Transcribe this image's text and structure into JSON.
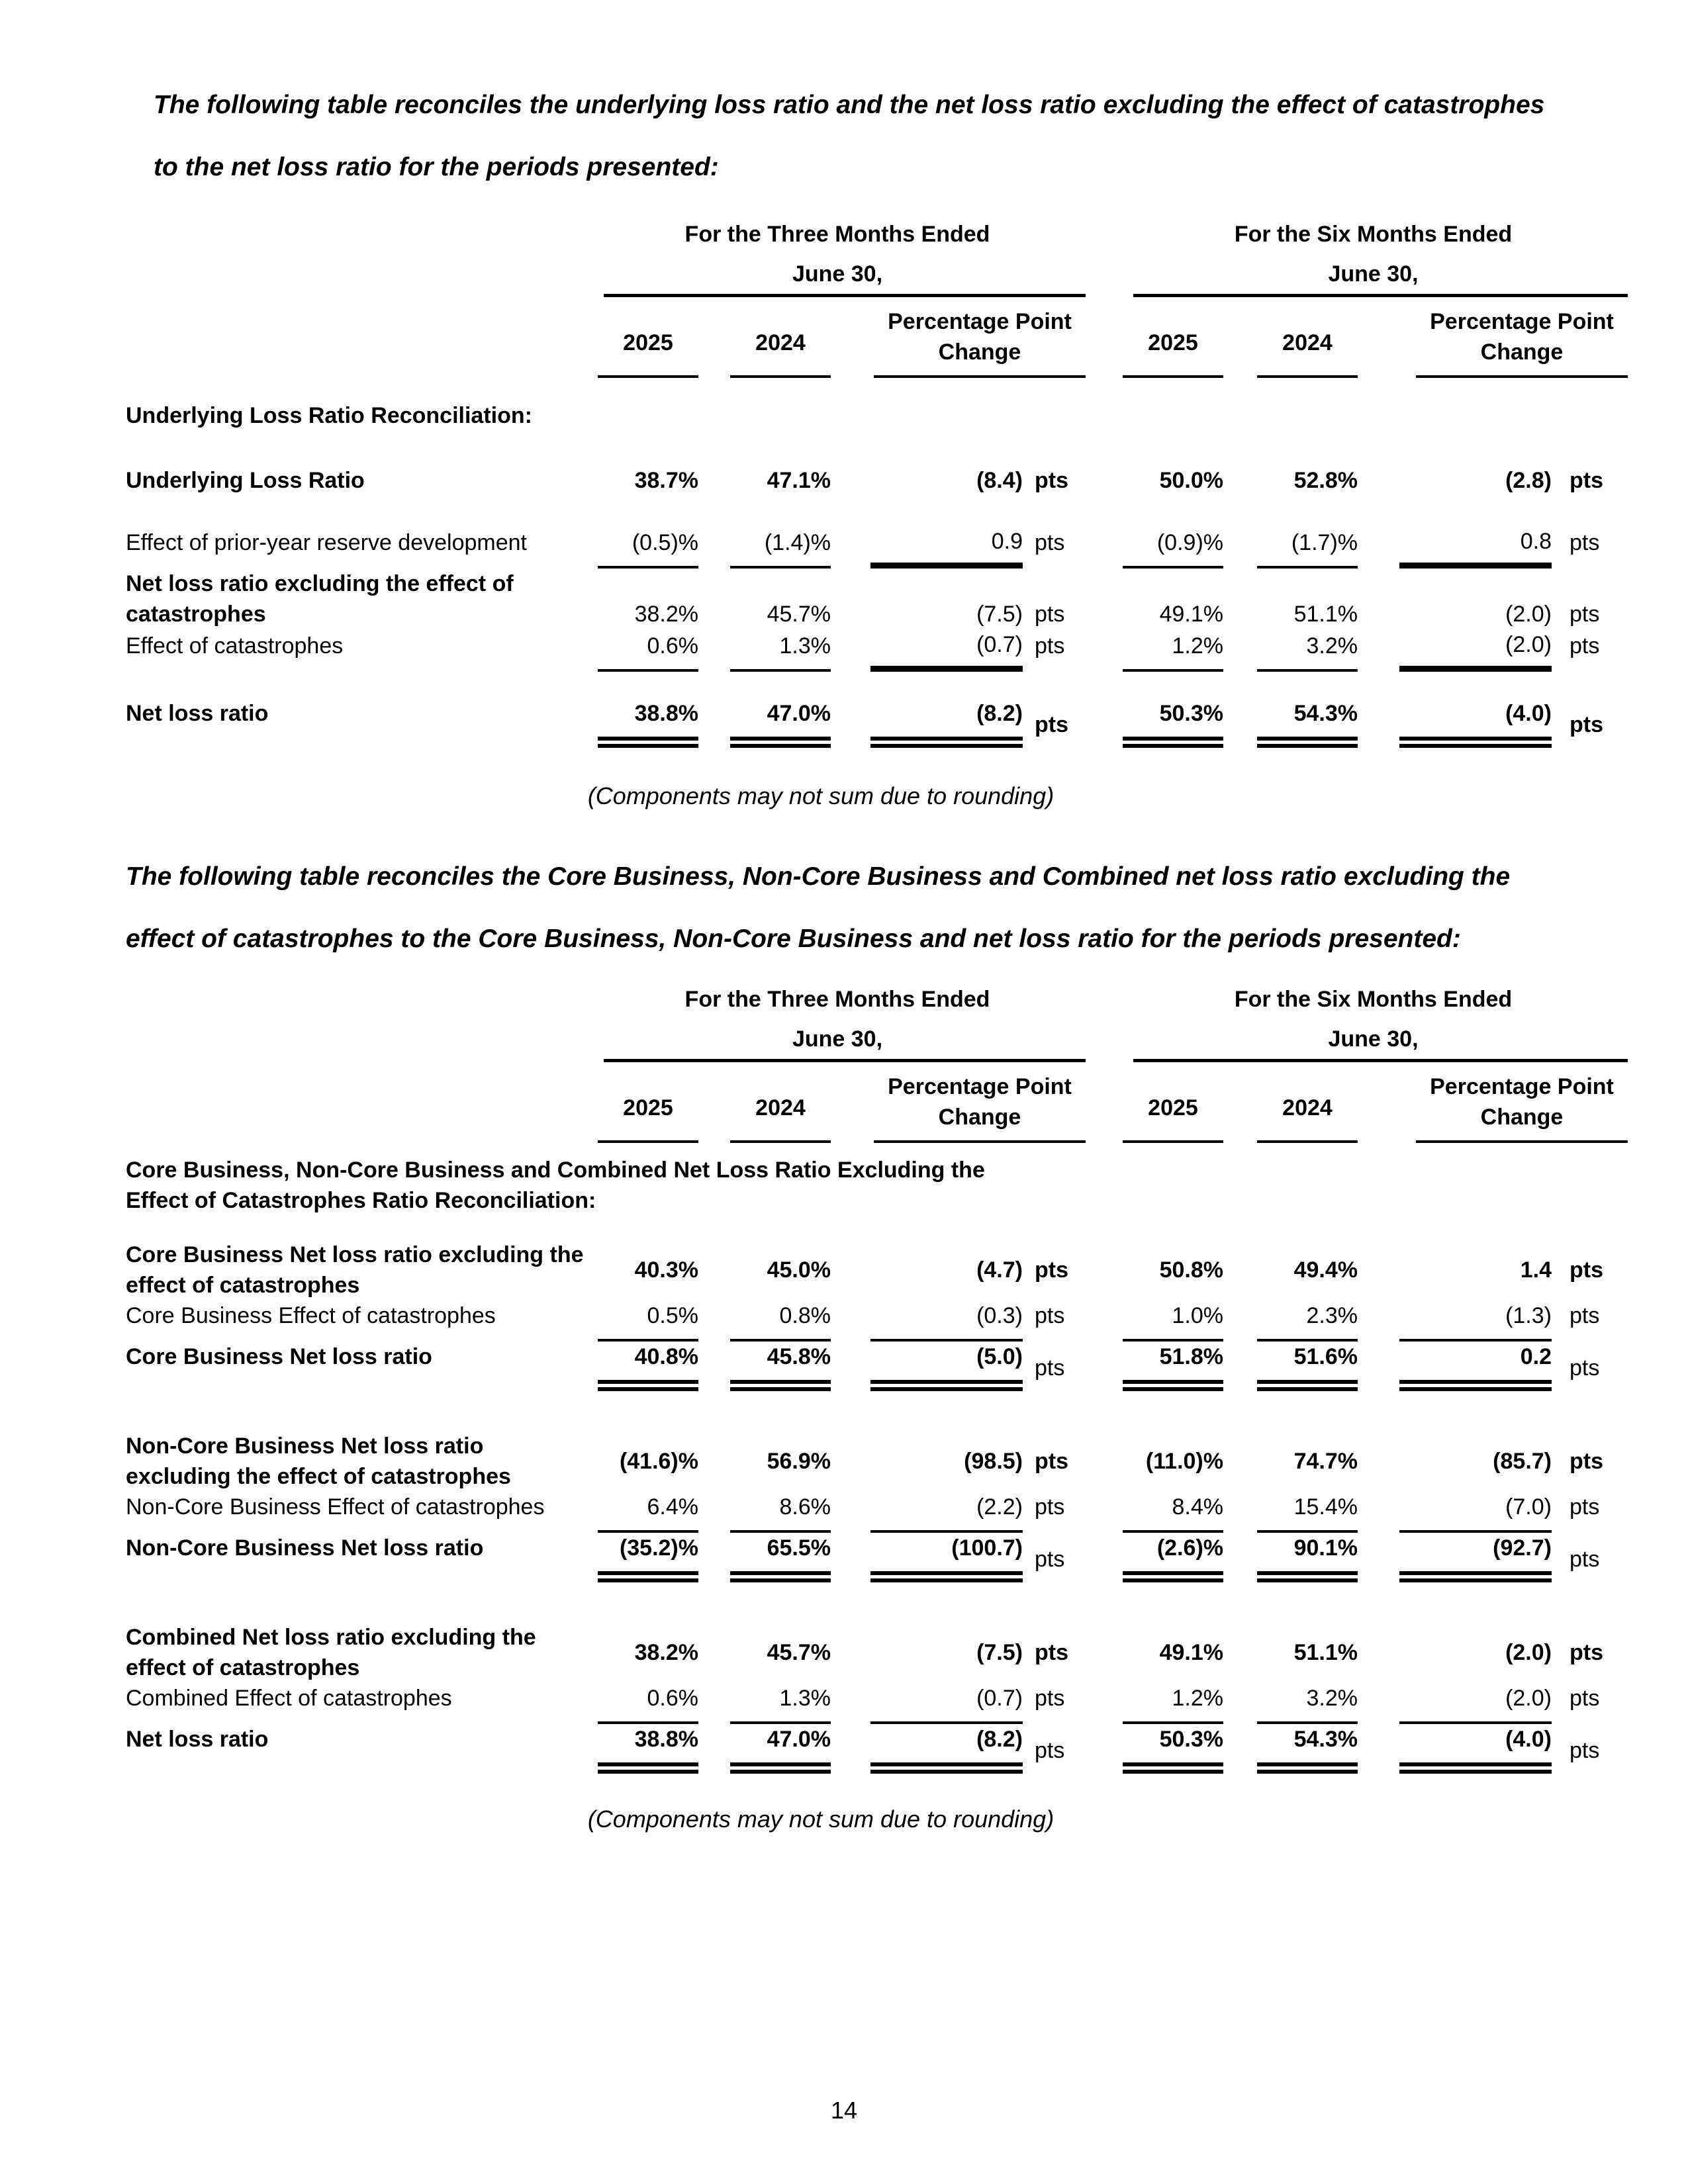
{
  "intro_paragraph_1": "The following table reconciles the underlying loss ratio and the net loss ratio excluding the effect of catastrophes to the net loss ratio for the periods presented:",
  "intro_paragraph_2": "The following table reconciles the Core Business, Non-Core Business and Combined net loss ratio excluding the effect of catastrophes to the Core Business, Non-Core Business and net loss ratio for the periods presented:",
  "note_rounding": "(Components may not sum due to rounding)",
  "page_number": "14",
  "labels": {
    "pts": "pts"
  },
  "column_headers": {
    "three_months": "For the Three Months Ended",
    "six_months": "For the Six Months Ended",
    "date": "June 30,",
    "y2025": "2025",
    "y2024": "2024",
    "ppc": "Percentage Point Change"
  },
  "table1": {
    "section_label": "Underlying Loss Ratio Reconciliation:",
    "rows": [
      {
        "label": "Underlying Loss Ratio",
        "m2025": "38.7%",
        "m2024": "47.1%",
        "mppc": "(8.4)",
        "s2025": "50.0%",
        "s2024": "52.8%",
        "sppc": "(2.8)"
      },
      {
        "label": "Effect of prior-year reserve development",
        "m2025": "(0.5)%",
        "m2024": "(1.4)%",
        "mppc": "0.9",
        "s2025": "(0.9)%",
        "s2024": "(1.7)%",
        "sppc": "0.8"
      },
      {
        "label": "Net loss ratio excluding the effect of catastrophes",
        "m2025": "38.2%",
        "m2024": "45.7%",
        "mppc": "(7.5)",
        "s2025": "49.1%",
        "s2024": "51.1%",
        "sppc": "(2.0)"
      },
      {
        "label": "Effect of catastrophes",
        "m2025": "0.6%",
        "m2024": "1.3%",
        "mppc": "(0.7)",
        "s2025": "1.2%",
        "s2024": "3.2%",
        "sppc": "(2.0)"
      },
      {
        "label": "Net loss ratio",
        "m2025": "38.8%",
        "m2024": "47.0%",
        "mppc": "(8.2)",
        "s2025": "50.3%",
        "s2024": "54.3%",
        "sppc": "(4.0)"
      }
    ]
  },
  "table2": {
    "section_label": "Core Business, Non-Core Business and Combined Net Loss Ratio Excluding the Effect of Catastrophes Ratio Reconciliation:",
    "rows": [
      {
        "label": "Core Business Net loss ratio excluding the effect of catastrophes",
        "m2025": "40.3%",
        "m2024": "45.0%",
        "mppc": "(4.7)",
        "s2025": "50.8%",
        "s2024": "49.4%",
        "sppc": "1.4"
      },
      {
        "label": "Core Business Effect of catastrophes",
        "m2025": "0.5%",
        "m2024": "0.8%",
        "mppc": "(0.3)",
        "s2025": "1.0%",
        "s2024": "2.3%",
        "sppc": "(1.3)"
      },
      {
        "label": "Core Business Net loss ratio",
        "m2025": "40.8%",
        "m2024": "45.8%",
        "mppc": "(5.0)",
        "s2025": "51.8%",
        "s2024": "51.6%",
        "sppc": "0.2"
      },
      {
        "label": "Non-Core Business Net loss ratio excluding the effect of catastrophes",
        "m2025": "(41.6)%",
        "m2024": "56.9%",
        "mppc": "(98.5)",
        "s2025": "(11.0)%",
        "s2024": "74.7%",
        "sppc": "(85.7)"
      },
      {
        "label": "Non-Core Business Effect of catastrophes",
        "m2025": "6.4%",
        "m2024": "8.6%",
        "mppc": "(2.2)",
        "s2025": "8.4%",
        "s2024": "15.4%",
        "sppc": "(7.0)"
      },
      {
        "label": "Non-Core Business Net loss ratio",
        "m2025": "(35.2)%",
        "m2024": "65.5%",
        "mppc": "(100.7)",
        "s2025": "(2.6)%",
        "s2024": "90.1%",
        "sppc": "(92.7)"
      },
      {
        "label": "Combined Net loss ratio excluding the effect of catastrophes",
        "m2025": "38.2%",
        "m2024": "45.7%",
        "mppc": "(7.5)",
        "s2025": "49.1%",
        "s2024": "51.1%",
        "sppc": "(2.0)"
      },
      {
        "label": "Combined Effect of catastrophes",
        "m2025": "0.6%",
        "m2024": "1.3%",
        "mppc": "(0.7)",
        "s2025": "1.2%",
        "s2024": "3.2%",
        "sppc": "(2.0)"
      },
      {
        "label": "Net loss ratio",
        "m2025": "38.8%",
        "m2024": "47.0%",
        "mppc": "(8.2)",
        "s2025": "50.3%",
        "s2024": "54.3%",
        "sppc": "(4.0)"
      }
    ]
  }
}
